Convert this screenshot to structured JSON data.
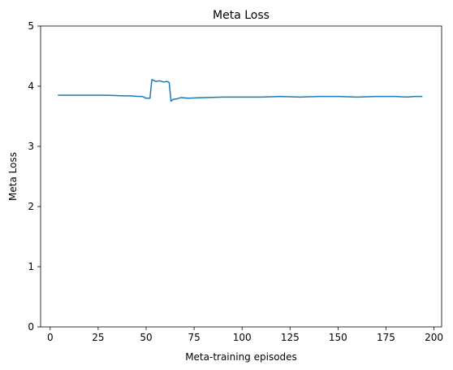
{
  "chart_data": {
    "type": "line",
    "title": "Meta Loss",
    "xlabel": "Meta-training episodes",
    "ylabel": "Meta Loss",
    "xlim": [
      -5,
      204
    ],
    "ylim": [
      0,
      5
    ],
    "xticks": [
      0,
      25,
      50,
      75,
      100,
      125,
      150,
      175,
      200
    ],
    "yticks": [
      0,
      1,
      2,
      3,
      4,
      5
    ],
    "grid": false,
    "line_color": "#1f77b4",
    "series": [
      {
        "x": [
          4,
          10,
          20,
          30,
          38,
          42,
          46,
          48,
          50,
          52,
          53,
          55,
          57,
          59,
          61,
          62,
          63,
          64,
          66,
          68,
          72,
          80,
          90,
          100,
          110,
          120,
          130,
          140,
          150,
          160,
          170,
          180,
          186,
          190,
          194
        ],
        "y": [
          3.85,
          3.85,
          3.85,
          3.85,
          3.84,
          3.84,
          3.83,
          3.83,
          3.8,
          3.8,
          4.11,
          4.08,
          4.09,
          4.07,
          4.08,
          4.06,
          3.75,
          3.78,
          3.79,
          3.81,
          3.8,
          3.81,
          3.82,
          3.82,
          3.82,
          3.83,
          3.82,
          3.83,
          3.83,
          3.82,
          3.83,
          3.83,
          3.82,
          3.83,
          3.83
        ]
      }
    ]
  }
}
